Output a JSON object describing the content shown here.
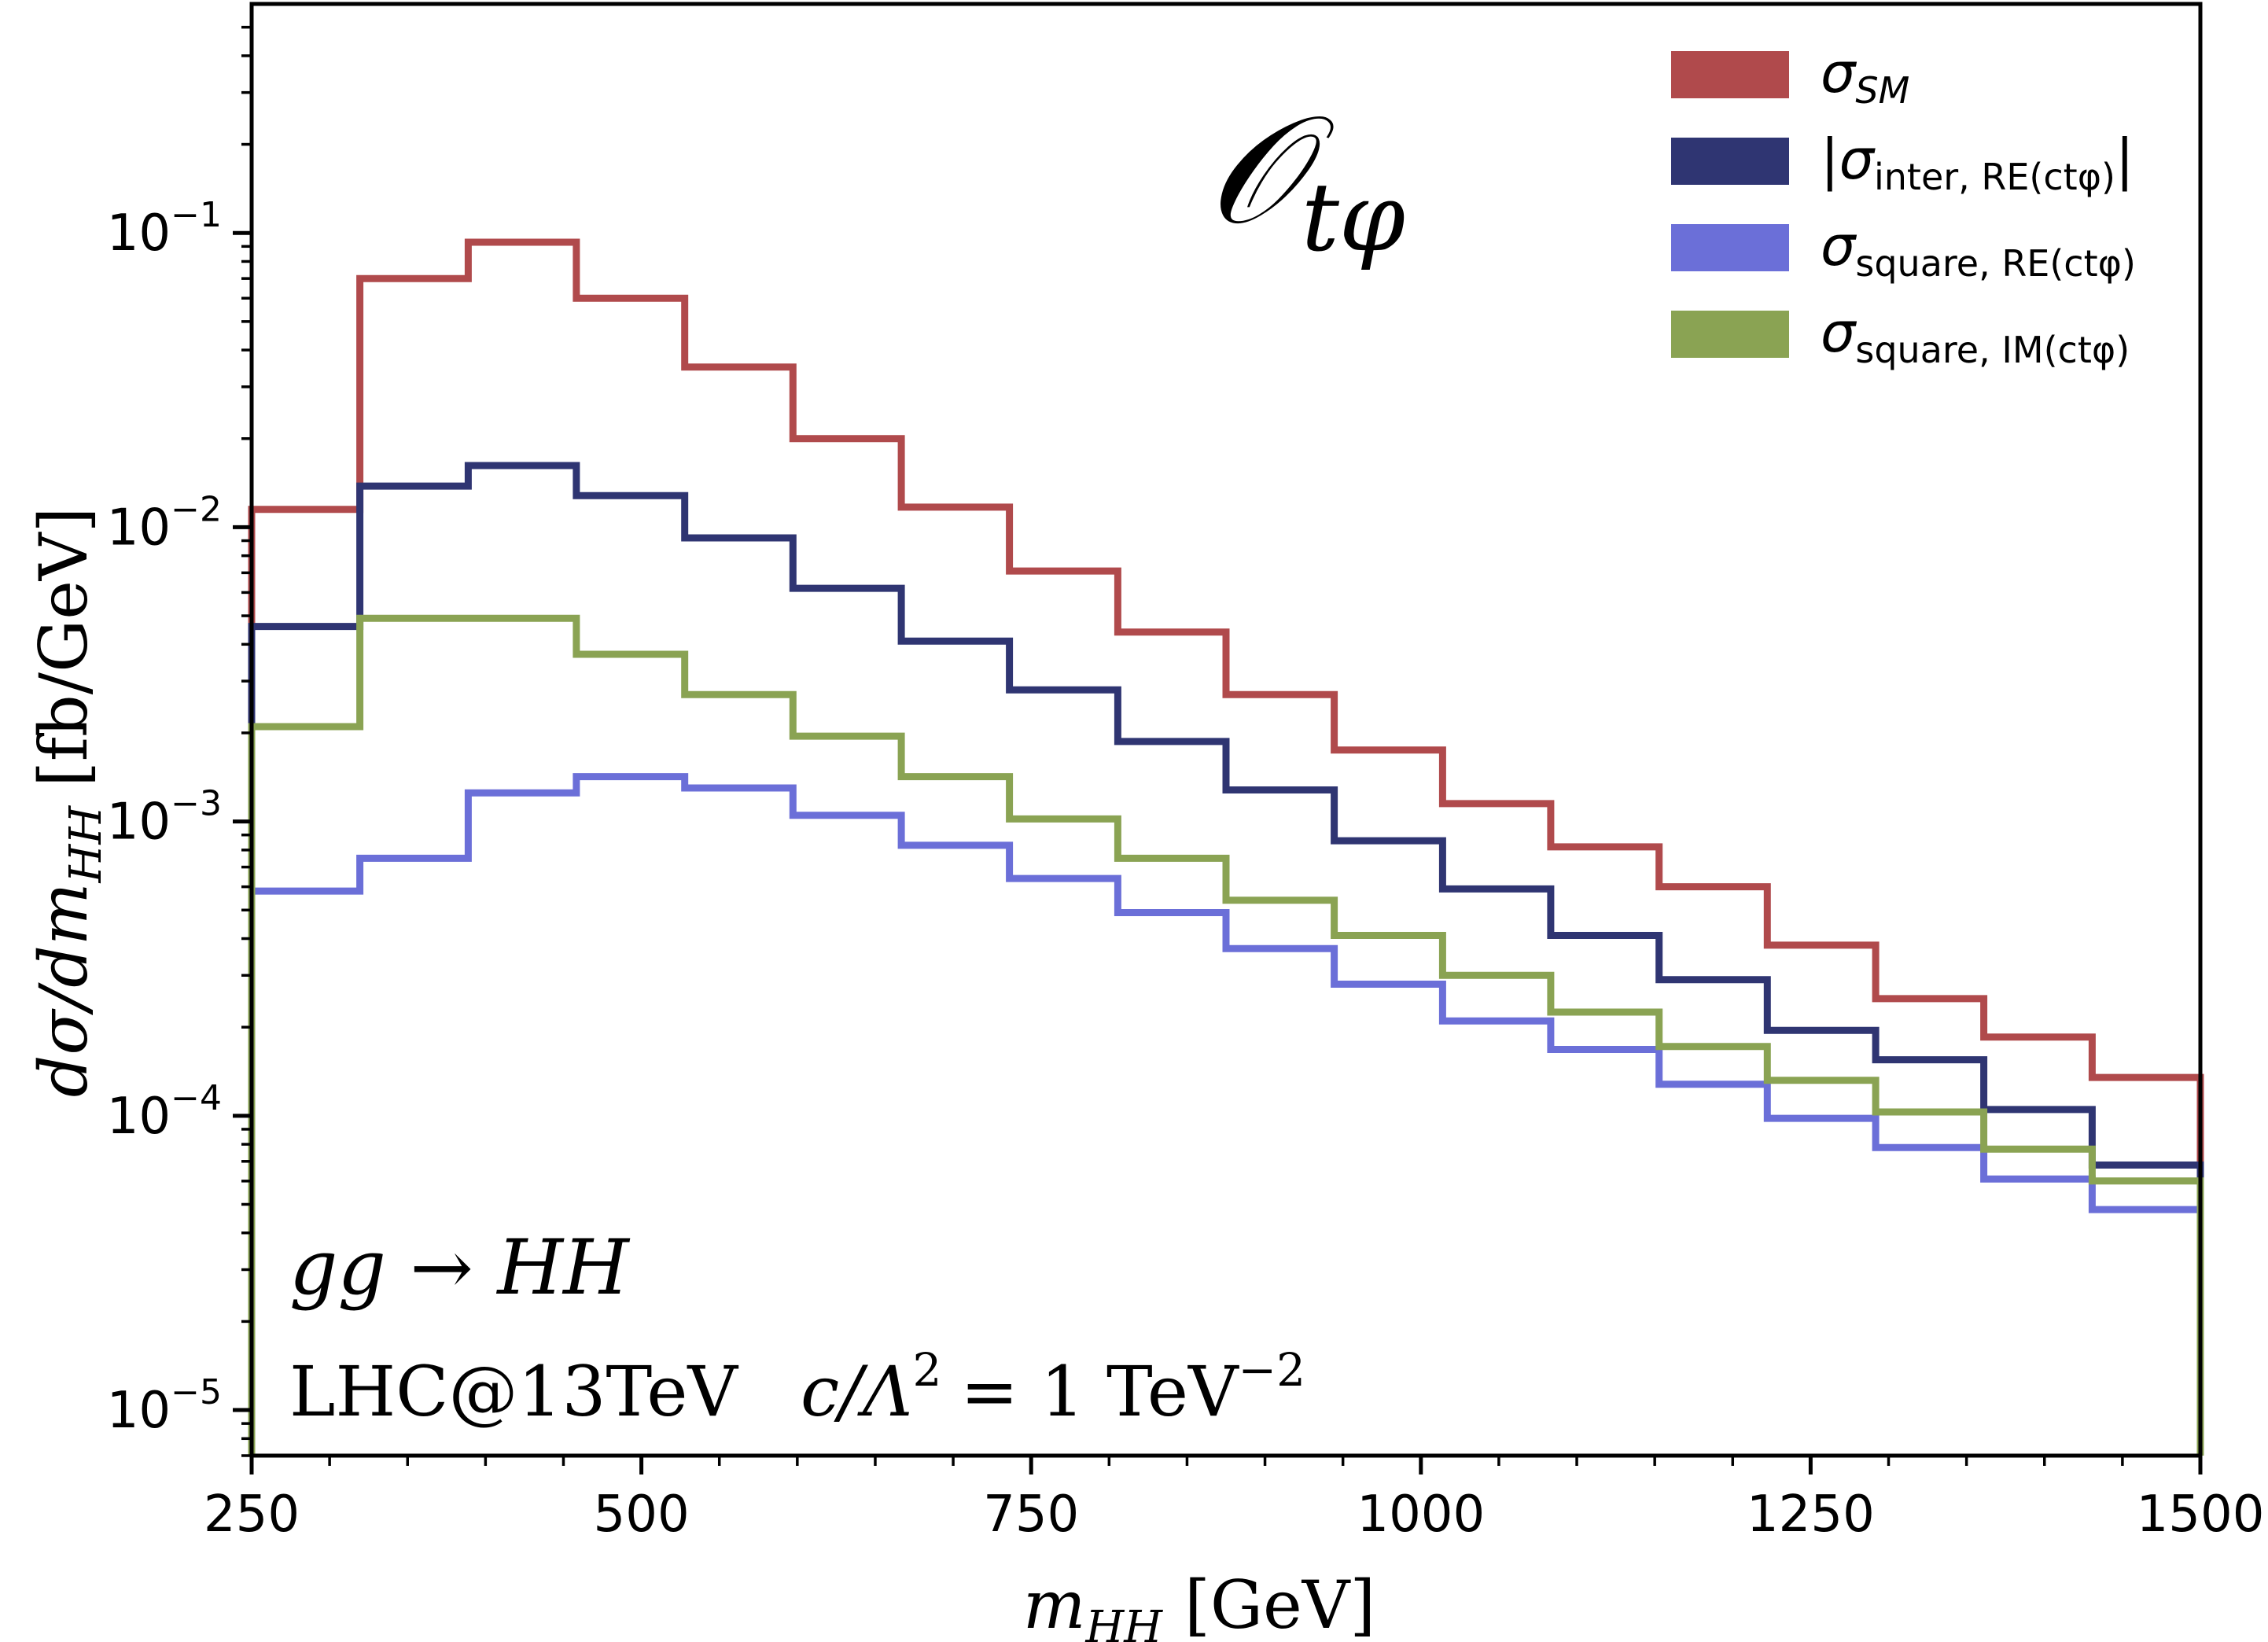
{
  "chart_data": {
    "type": "line",
    "style": "step-histogram",
    "title": "",
    "operator_label": {
      "main": "𝒪",
      "sub": "tφ"
    },
    "xlabel": {
      "var": "m",
      "sub": "HH",
      "unit": "[GeV]"
    },
    "ylabel": {
      "text": "dσ/dm",
      "sub": "HH",
      "unit": "[fb/GeV]"
    },
    "xlim": [
      250,
      1500
    ],
    "ylim": [
      7e-06,
      0.6
    ],
    "yscale": "log",
    "x_ticks": [
      250,
      500,
      750,
      1000,
      1250,
      1500
    ],
    "y_ticks": [
      {
        "value": 0.1,
        "base": "10",
        "exp": "−1"
      },
      {
        "value": 0.01,
        "base": "10",
        "exp": "−2"
      },
      {
        "value": 0.001,
        "base": "10",
        "exp": "−3"
      },
      {
        "value": 0.0001,
        "base": "10",
        "exp": "−4"
      },
      {
        "value": 1e-05,
        "base": "10",
        "exp": "−5"
      }
    ],
    "bin_edges": [
      250,
      319.4,
      388.9,
      458.3,
      527.8,
      597.2,
      666.7,
      736.1,
      805.6,
      875,
      944.4,
      1013.9,
      1083.3,
      1152.8,
      1222.2,
      1291.7,
      1361.1,
      1430.6,
      1500
    ],
    "series": [
      {
        "name": "sigma_SM",
        "legend_main": "σ",
        "legend_sub": "SM",
        "legend_sub_italic": true,
        "abs_bars": false,
        "color": "#b04a4c",
        "values": [
          0.0115,
          0.07,
          0.093,
          0.06,
          0.035,
          0.02,
          0.0117,
          0.0071,
          0.0044,
          0.0027,
          0.00175,
          0.00115,
          0.00082,
          0.0006,
          0.00038,
          0.00025,
          0.000185,
          0.000135
        ]
      },
      {
        "name": "sigma_inter_RE",
        "legend_main": "σ",
        "legend_sub": "inter, RE(ctφ)",
        "legend_sub_italic": false,
        "abs_bars": true,
        "color": "#2f3572",
        "values": [
          0.0046,
          0.0138,
          0.0162,
          0.0128,
          0.0092,
          0.0062,
          0.0041,
          0.0028,
          0.00187,
          0.00128,
          0.00086,
          0.00059,
          0.00041,
          0.00029,
          0.000195,
          0.000155,
          0.000105,
          6.8e-05
        ]
      },
      {
        "name": "sigma_square_RE",
        "legend_main": "σ",
        "legend_sub": "square, RE(ctφ)",
        "legend_sub_italic": false,
        "abs_bars": false,
        "color": "#6b6fd8",
        "values": [
          0.00058,
          0.00075,
          0.00125,
          0.00142,
          0.0013,
          0.00105,
          0.00083,
          0.00064,
          0.00049,
          0.00037,
          0.00028,
          0.00021,
          0.000168,
          0.000128,
          9.8e-05,
          7.8e-05,
          6.1e-05,
          4.8e-05
        ]
      },
      {
        "name": "sigma_square_IM",
        "legend_main": "σ",
        "legend_sub": "square, IM(ctφ)",
        "legend_sub_italic": false,
        "abs_bars": false,
        "color": "#8aa353",
        "values": [
          0.0021,
          0.0049,
          0.0049,
          0.0037,
          0.0027,
          0.00195,
          0.00142,
          0.00102,
          0.00075,
          0.00054,
          0.00041,
          0.0003,
          0.000225,
          0.000172,
          0.000132,
          0.000103,
          7.7e-05,
          6e-05
        ]
      }
    ],
    "annotations": {
      "process": "gg → HH",
      "energy": "LHC@13TeV",
      "coupling": "c/Λ",
      "coupling_exp": "2",
      "coupling_rhs": "= 1 TeV",
      "coupling_rhs_exp": "−2"
    },
    "legend_position": "top-right",
    "grid": false
  }
}
